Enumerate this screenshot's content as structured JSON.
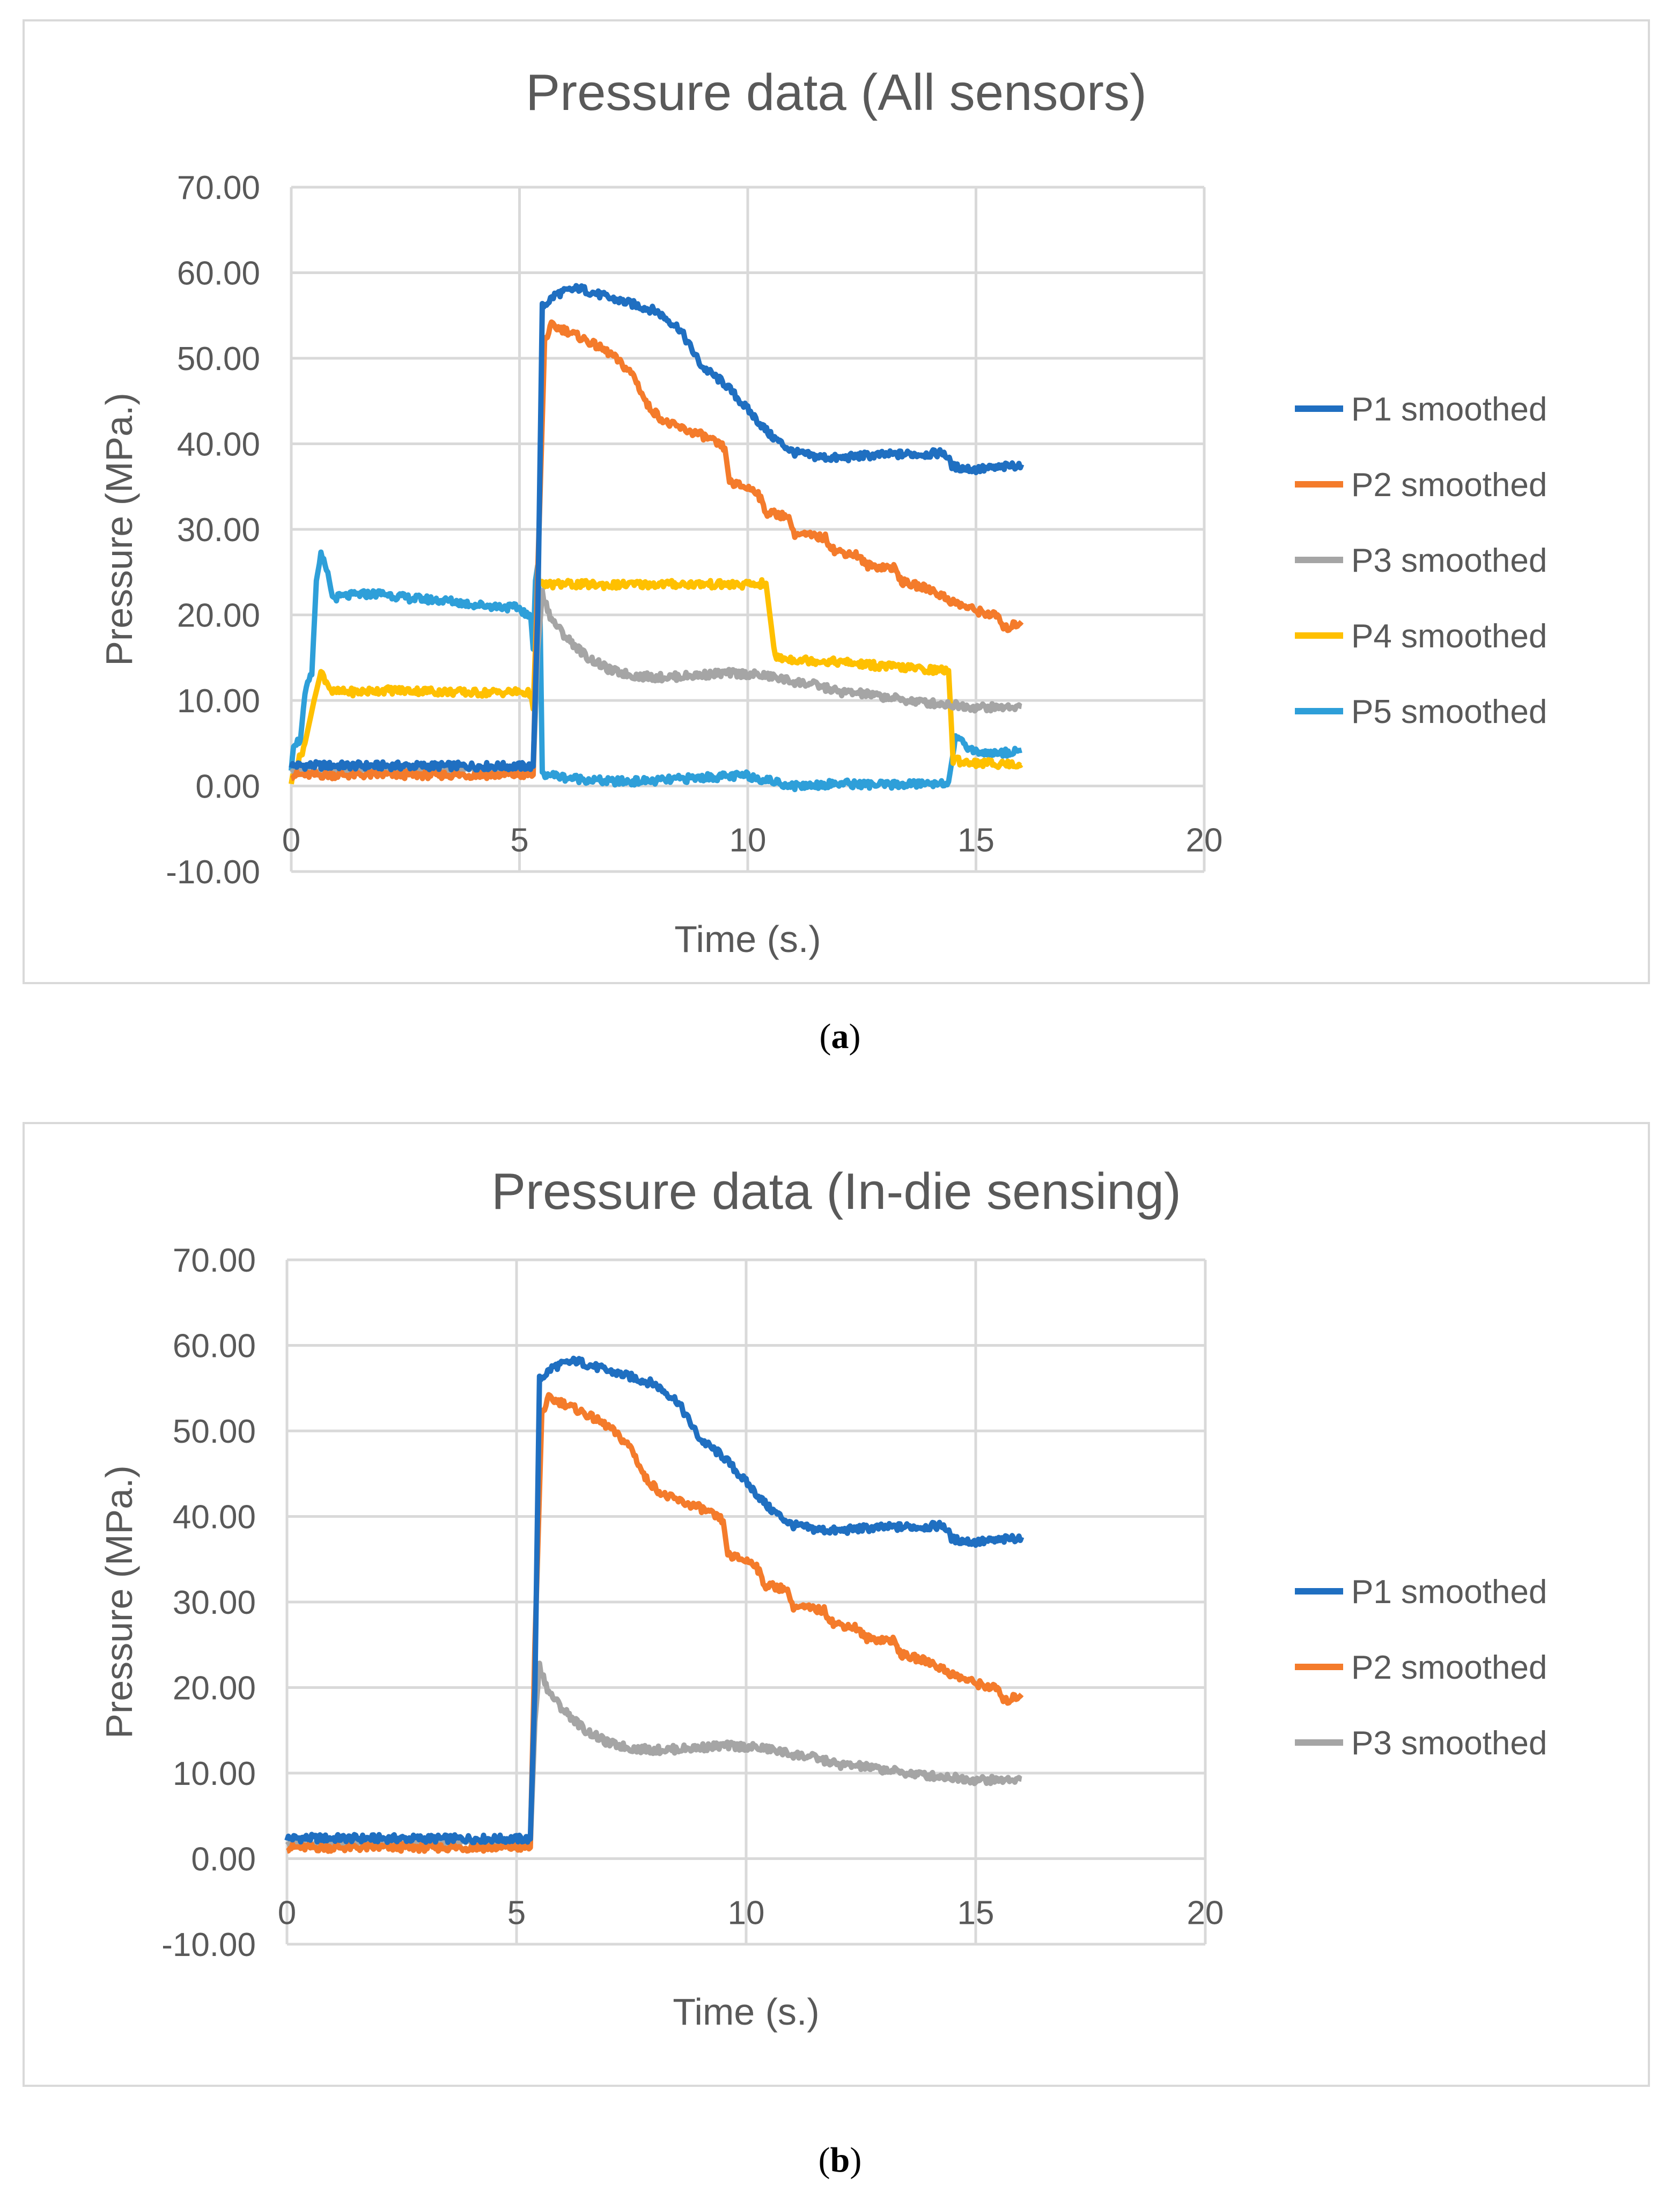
{
  "charts": [
    {
      "title": "Pressure data (All sensors)",
      "caption_letter": "a",
      "xlabel": "Time (s.)",
      "ylabel": "Pressure (MPa.)",
      "series_keys": [
        "P1",
        "P2",
        "P3",
        "P4",
        "P5"
      ]
    },
    {
      "title": "Pressure data (In-die sensing)",
      "caption_letter": "b",
      "xlabel": "Time (s.)",
      "ylabel": "Pressure  (MPa.)",
      "series_keys": [
        "P1",
        "P2",
        "P3"
      ]
    }
  ],
  "chart_data": {
    "type": "line",
    "xlim": [
      0,
      20
    ],
    "ylim": [
      -10,
      70
    ],
    "x_ticks": [
      "0",
      "5",
      "10",
      "15",
      "20"
    ],
    "y_ticks": [
      "-10.00",
      "0.00",
      "10.00",
      "20.00",
      "30.00",
      "40.00",
      "50.00",
      "60.00",
      "70.00"
    ],
    "grid": true,
    "legend_position": "right",
    "series": {
      "P1": {
        "name": "P1 smoothed",
        "color": "#1f6fc1",
        "points": [
          [
            0,
            2.4
          ],
          [
            5.3,
            2.3
          ],
          [
            5.4,
            20
          ],
          [
            5.5,
            56
          ],
          [
            5.8,
            57.5
          ],
          [
            6.3,
            58.2
          ],
          [
            7,
            57
          ],
          [
            7.5,
            56.3
          ],
          [
            8,
            55.5
          ],
          [
            8.5,
            53.5
          ],
          [
            9,
            49
          ],
          [
            9.5,
            47
          ],
          [
            10,
            44
          ],
          [
            10.5,
            41
          ],
          [
            11,
            39
          ],
          [
            11.5,
            38.5
          ],
          [
            12,
            38.3
          ],
          [
            12.5,
            38.6
          ],
          [
            13,
            38.7
          ],
          [
            13.5,
            38.8
          ],
          [
            14,
            38.8
          ],
          [
            14.3,
            39
          ],
          [
            14.5,
            37.3
          ],
          [
            15,
            37
          ],
          [
            15.5,
            37.2
          ],
          [
            16,
            37.6
          ]
        ]
      },
      "P2": {
        "name": "P2 smoothed",
        "color": "#f47b2b",
        "points": [
          [
            0,
            1.3
          ],
          [
            5.3,
            1.3
          ],
          [
            5.4,
            25
          ],
          [
            5.55,
            52
          ],
          [
            5.7,
            53.8
          ],
          [
            6,
            53.3
          ],
          [
            6.5,
            52
          ],
          [
            7,
            50.5
          ],
          [
            7.5,
            48
          ],
          [
            7.8,
            44.5
          ],
          [
            8.2,
            42.5
          ],
          [
            8.7,
            41.5
          ],
          [
            9,
            41
          ],
          [
            9.5,
            39.5
          ],
          [
            9.6,
            35.5
          ],
          [
            10.2,
            34.5
          ],
          [
            10.4,
            32
          ],
          [
            10.9,
            31.5
          ],
          [
            11,
            29.5
          ],
          [
            11.7,
            29
          ],
          [
            11.9,
            27.5
          ],
          [
            12.4,
            27
          ],
          [
            12.6,
            25.8
          ],
          [
            13.2,
            25.5
          ],
          [
            13.4,
            23.8
          ],
          [
            14,
            23
          ],
          [
            14.5,
            21.5
          ],
          [
            15,
            20.5
          ],
          [
            15.5,
            19.8
          ],
          [
            15.6,
            18.3
          ],
          [
            16,
            19.2
          ]
        ]
      },
      "P3": {
        "name": "P3 smoothed",
        "color": "#a5a5a5",
        "points": [
          [
            0,
            1.8
          ],
          [
            5.3,
            1.8
          ],
          [
            5.4,
            16
          ],
          [
            5.5,
            22.5
          ],
          [
            5.7,
            19.5
          ],
          [
            6,
            17.5
          ],
          [
            6.5,
            15
          ],
          [
            7,
            13.5
          ],
          [
            7.5,
            12.9
          ],
          [
            8,
            12.7
          ],
          [
            8.5,
            12.8
          ],
          [
            9,
            13
          ],
          [
            9.5,
            13.2
          ],
          [
            10,
            13.1
          ],
          [
            10.5,
            12.8
          ],
          [
            11,
            12.2
          ],
          [
            11.5,
            11.8
          ],
          [
            12,
            11
          ],
          [
            12.5,
            10.8
          ],
          [
            13,
            10.4
          ],
          [
            13.5,
            10
          ],
          [
            14,
            9.7
          ],
          [
            14.5,
            9.5
          ],
          [
            15,
            9.2
          ],
          [
            15.5,
            9.2
          ],
          [
            16,
            9.3
          ]
        ]
      },
      "P4": {
        "name": "P4 smoothed",
        "color": "#ffc000",
        "points": [
          [
            0,
            0.5
          ],
          [
            0.3,
            5
          ],
          [
            0.5,
            10
          ],
          [
            0.65,
            13.3
          ],
          [
            0.8,
            12
          ],
          [
            0.9,
            11
          ],
          [
            1.5,
            11
          ],
          [
            2,
            11.2
          ],
          [
            3,
            11.1
          ],
          [
            4,
            10.9
          ],
          [
            5,
            11
          ],
          [
            5.25,
            10.8
          ],
          [
            5.3,
            9
          ],
          [
            5.4,
            23.5
          ],
          [
            6,
            23.6
          ],
          [
            7,
            23.5
          ],
          [
            8,
            23.6
          ],
          [
            9,
            23.6
          ],
          [
            10,
            23.5
          ],
          [
            10.4,
            23.7
          ],
          [
            10.6,
            15
          ],
          [
            11,
            14.8
          ],
          [
            12,
            14.5
          ],
          [
            13,
            14
          ],
          [
            14,
            13.6
          ],
          [
            14.4,
            13.5
          ],
          [
            14.5,
            3
          ],
          [
            15,
            2.7
          ],
          [
            16,
            2.5
          ]
        ]
      },
      "P5": {
        "name": "P5 smoothed",
        "color": "#2e9fd9",
        "points": [
          [
            0,
            1.8
          ],
          [
            0.05,
            5
          ],
          [
            0.2,
            5.3
          ],
          [
            0.3,
            11
          ],
          [
            0.45,
            13
          ],
          [
            0.55,
            24
          ],
          [
            0.65,
            27
          ],
          [
            0.8,
            25
          ],
          [
            0.9,
            22
          ],
          [
            1.5,
            22.4
          ],
          [
            2,
            22.5
          ],
          [
            2.5,
            22
          ],
          [
            3,
            21.8
          ],
          [
            3.5,
            21.6
          ],
          [
            4,
            21.2
          ],
          [
            4.5,
            21
          ],
          [
            5,
            20.8
          ],
          [
            5.25,
            19.5
          ],
          [
            5.3,
            16
          ],
          [
            5.35,
            24
          ],
          [
            5.4,
            25.8
          ],
          [
            5.45,
            20
          ],
          [
            5.5,
            1.5
          ],
          [
            6,
            1
          ],
          [
            7,
            0.5
          ],
          [
            8,
            0.6
          ],
          [
            9,
            1
          ],
          [
            10,
            1.2
          ],
          [
            11,
            0
          ],
          [
            12,
            0.3
          ],
          [
            13,
            0.1
          ],
          [
            14,
            0.3
          ],
          [
            14.4,
            0.5
          ],
          [
            14.55,
            5.5
          ],
          [
            15,
            4
          ],
          [
            15.5,
            3.8
          ],
          [
            16,
            4.2
          ]
        ]
      }
    }
  }
}
